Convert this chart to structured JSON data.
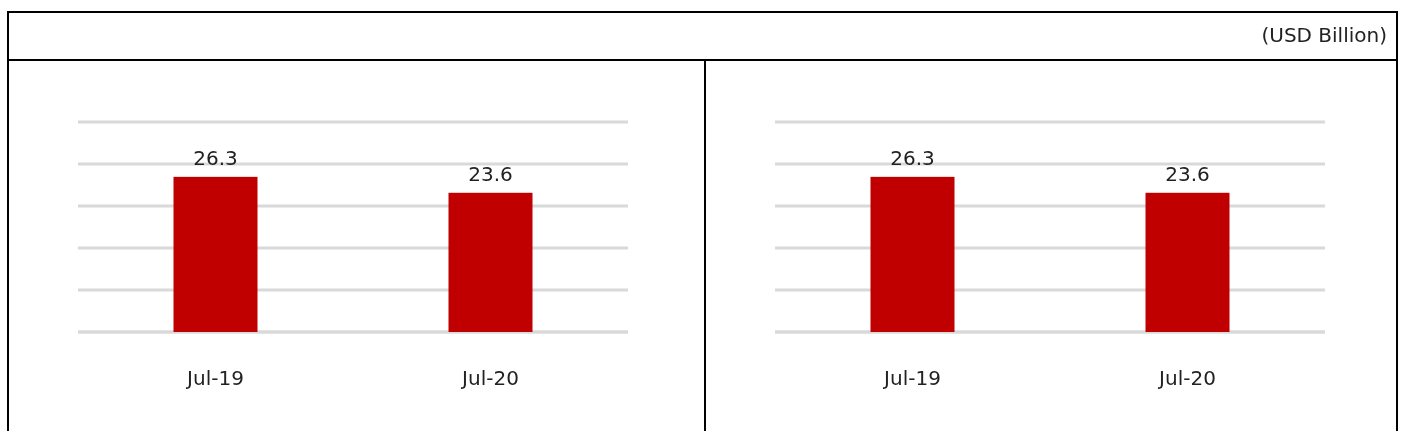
{
  "chart_data": [
    {
      "type": "bar",
      "categories": [
        "Jul-19",
        "Jul-20"
      ],
      "values": [
        26.3,
        23.6
      ],
      "color": "#c00000",
      "data_labels": true,
      "ylim": [
        0,
        35.6
      ],
      "yticks": [
        {
          "value": 0,
          "label": null
        },
        {
          "value": 7.12,
          "label": null
        },
        {
          "value": 14.24,
          "label": null
        },
        {
          "value": 21.36,
          "label": null
        },
        {
          "value": 28.48,
          "label": null
        },
        {
          "value": 35.6,
          "label": null
        }
      ],
      "grid": "y"
    },
    {
      "type": "bar",
      "categories": [
        "Jul-19",
        "Jul-20"
      ],
      "values": [
        26.3,
        23.6
      ],
      "color": "#c00000",
      "data_labels": true,
      "ylim": [
        0,
        35.6
      ],
      "yticks": [
        {
          "value": 0,
          "label": null
        },
        {
          "value": 7.12,
          "label": null
        },
        {
          "value": 14.24,
          "label": null
        },
        {
          "value": 21.36,
          "label": null
        },
        {
          "value": 28.48,
          "label": null
        },
        {
          "value": 35.6,
          "label": null
        }
      ],
      "grid": "y",
      "annotations": [
        "(USD Billion)"
      ]
    }
  ]
}
